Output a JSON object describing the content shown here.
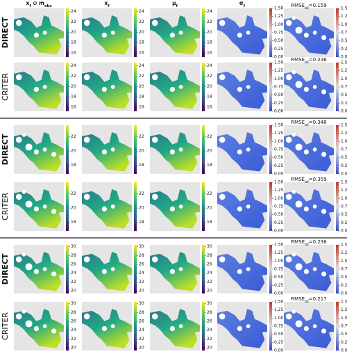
{
  "columns": [
    [
      {
        "text": "x"
      },
      {
        "text": "f",
        "sub": true
      },
      {
        "text": " ⊙ m"
      },
      {
        "text": "obs",
        "sub": true
      }
    ],
    [
      {
        "text": "x"
      },
      {
        "text": "f",
        "sub": true
      }
    ],
    [
      {
        "text": "μ"
      },
      {
        "text": "f",
        "sub": true
      }
    ],
    [
      {
        "text": "σ"
      },
      {
        "text": "f",
        "sub": true
      }
    ],
    []
  ],
  "groups": [
    {
      "colorbar": {
        "lim": [
          15.2,
          24.6
        ],
        "ticks": [
          16,
          18,
          20,
          22,
          24
        ]
      },
      "rows": [
        {
          "label": "DIRECT",
          "bold": true,
          "rmse": [
            {
              "text": "RMSE"
            },
            {
              "text": "all",
              "sub": true
            },
            {
              "text": "=0.159"
            }
          ]
        },
        {
          "label": "CRITER",
          "bold": false,
          "rmse": [
            {
              "text": "RMSE"
            },
            {
              "text": "all",
              "sub": true
            },
            {
              "text": "=0.236"
            }
          ]
        }
      ]
    },
    {
      "colorbar": {
        "lim": [
          16.8,
          23.6
        ],
        "ticks": [
          18,
          20,
          22
        ]
      },
      "rows": [
        {
          "label": "DIRECT",
          "bold": true,
          "rmse": [
            {
              "text": "RMSE"
            },
            {
              "text": "all",
              "sub": true
            },
            {
              "text": "=0.348"
            }
          ]
        },
        {
          "label": "CRITER",
          "bold": false,
          "rmse": [
            {
              "text": "RMSE"
            },
            {
              "text": "all",
              "sub": true
            },
            {
              "text": "=0.359"
            }
          ]
        }
      ]
    },
    {
      "colorbar": {
        "lim": [
          19.4,
          30.4
        ],
        "ticks": [
          20,
          22,
          24,
          26,
          28,
          30
        ]
      },
      "rows": [
        {
          "label": "DIRECT",
          "bold": true,
          "rmse": [
            {
              "text": "RMSE"
            },
            {
              "text": "all",
              "sub": true
            },
            {
              "text": "=0.236"
            }
          ]
        },
        {
          "label": "CRITER",
          "bold": false,
          "rmse": [
            {
              "text": "RMSE"
            },
            {
              "text": "all",
              "sub": true
            },
            {
              "text": "=0.217"
            }
          ]
        }
      ]
    }
  ],
  "error_colorbar": {
    "lim": [
      0,
      1.5
    ],
    "ticks": [
      {
        "value": 0,
        "label": "0.00"
      },
      {
        "value": 0.25,
        "label": "0.25"
      },
      {
        "value": 0.5,
        "label": "0.50"
      },
      {
        "value": 0.75,
        "label": "0.75"
      },
      {
        "value": 1,
        "label": "1.00"
      },
      {
        "value": 1.25,
        "label": "1.25"
      },
      {
        "value": 1.5,
        "label": "1.50"
      }
    ]
  }
}
